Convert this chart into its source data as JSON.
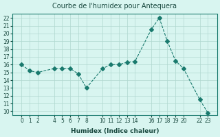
{
  "x": [
    0,
    1,
    2,
    4,
    5,
    6,
    7,
    8,
    10,
    11,
    12,
    13,
    14,
    16,
    17,
    18,
    19,
    20,
    22,
    23
  ],
  "y": [
    16,
    15.2,
    15.0,
    15.5,
    15.5,
    15.5,
    14.8,
    13.0,
    15.5,
    16.0,
    16.0,
    16.3,
    16.4,
    20.5,
    22.0,
    19.0,
    16.5,
    15.5,
    11.5,
    9.8
  ],
  "line_color": "#1a7a6e",
  "marker": "D",
  "marker_size": 3,
  "line_width": 0.8,
  "bg_color": "#d8f5f0",
  "grid_color": "#b0d8d0",
  "title": "Courbe de l'humidex pour Antequera",
  "xlabel": "Humidex (Indice chaleur)",
  "ylim": [
    9.5,
    22.5
  ],
  "yticks": [
    10,
    11,
    12,
    13,
    14,
    15,
    16,
    17,
    18,
    19,
    20,
    21,
    22
  ],
  "xticks": [
    0,
    1,
    2,
    4,
    5,
    6,
    7,
    8,
    10,
    11,
    12,
    13,
    14,
    16,
    17,
    18,
    19,
    20,
    22,
    23
  ],
  "xtick_labels": [
    "0",
    "1",
    "2",
    "4",
    "5",
    "6",
    "7",
    "8",
    "10",
    "11",
    "12",
    "13",
    "14",
    "16",
    "17",
    "18",
    "19",
    "20",
    "22",
    "23"
  ],
  "title_fontsize": 7,
  "axis_fontsize": 6.5,
  "tick_fontsize": 5.5,
  "text_color": "#1a4a40",
  "spine_color": "#1a7a6e"
}
